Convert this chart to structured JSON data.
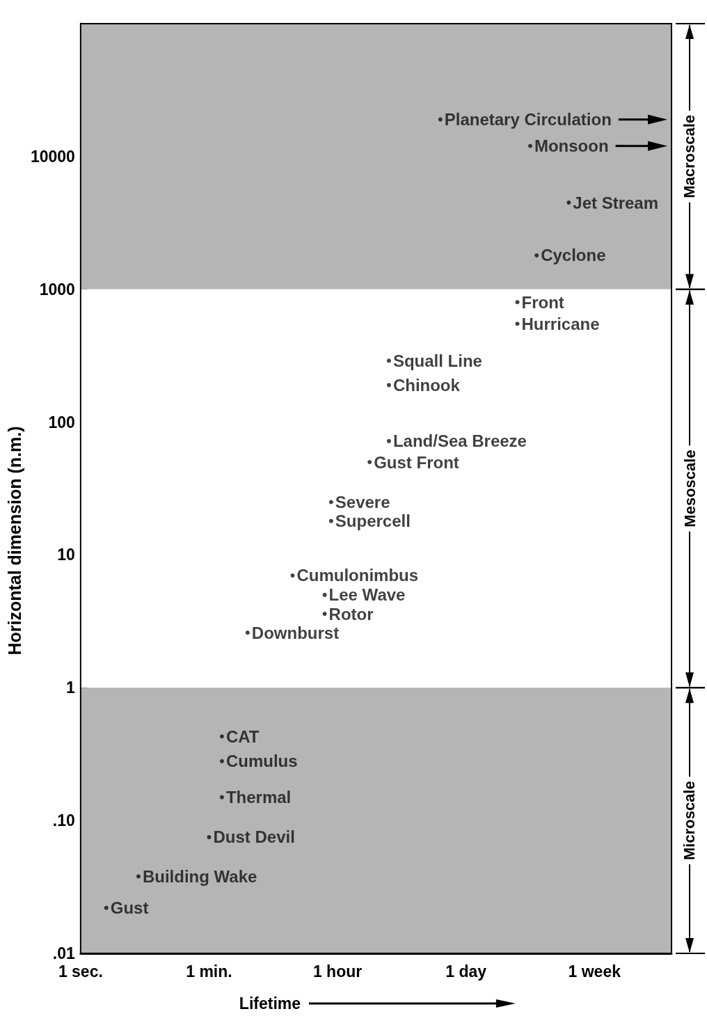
{
  "chart_data": {
    "type": "scatter",
    "xlabel": "Lifetime",
    "ylabel": "Horizontal dimension (n.m.)",
    "categories": [
      "1 sec.",
      null,
      null,
      null,
      null,
      null,
      null,
      null,
      null,
      null,
      null,
      null,
      null,
      null,
      null,
      null,
      null,
      null,
      null,
      null,
      "1 min.",
      null,
      null,
      null,
      null,
      null,
      null,
      null,
      null,
      null,
      null,
      null,
      null,
      null,
      null,
      null,
      null,
      null,
      null,
      null,
      "1 hour",
      null,
      null,
      null,
      null,
      null,
      null,
      null,
      null,
      null,
      null,
      null,
      null,
      null,
      null,
      null,
      null,
      null,
      null,
      null,
      "1 day",
      null,
      null,
      null,
      null,
      null,
      null,
      null,
      null,
      null,
      null,
      null,
      null,
      null,
      null,
      null,
      null,
      null,
      null,
      null,
      "1 week",
      null,
      null,
      null,
      null,
      null,
      null,
      null,
      null,
      null,
      null,
      null,
      null
    ],
    "ylim": [
      0.01,
      100000
    ],
    "yticks": [
      {
        "value": 0.01,
        "label": ".01"
      },
      {
        "value": 0.1,
        "label": ".10"
      },
      1,
      10,
      100,
      1000,
      10000
    ],
    "log": true,
    "marker": "circle",
    "bands": [
      {
        "axis": "y",
        "from": 1000,
        "to": 100000,
        "label": "Macroscale",
        "color": "#b5b5b5"
      },
      {
        "axis": "y",
        "from": 1,
        "to": 1000,
        "label": "Mesoscale",
        "color": "#ffffff"
      },
      {
        "axis": "y",
        "from": 0.01,
        "to": 1,
        "label": "Microscale",
        "color": "#b5b5b5"
      }
    ],
    "series": [
      {
        "color": "#111111",
        "values": [
          null,
          null,
          null,
          null,
          0.022,
          null,
          null,
          null,
          null,
          0.038,
          null,
          null,
          null,
          null,
          null,
          null,
          null,
          null,
          null,
          null,
          0.075,
          null,
          0.43,
          null,
          null,
          null,
          2.6,
          null,
          null,
          null,
          null,
          null,
          null,
          7,
          null,
          null,
          null,
          null,
          5,
          25,
          null,
          null,
          null,
          null,
          null,
          50,
          null,
          null,
          290,
          null,
          null,
          null,
          null,
          null,
          null,
          null,
          19000,
          null,
          null,
          null,
          null,
          null,
          null,
          null,
          null,
          null,
          null,
          null,
          800,
          null,
          12000,
          1800,
          null,
          null,
          null,
          null,
          4500,
          null,
          null,
          null,
          null,
          null,
          null,
          null,
          null,
          null,
          null,
          null,
          null,
          null,
          null,
          null,
          null
        ],
        "value_labels": [
          null,
          null,
          null,
          null,
          "Gust",
          null,
          null,
          null,
          null,
          "Building Wake",
          null,
          null,
          null,
          null,
          null,
          null,
          null,
          null,
          null,
          null,
          "Dust Devil",
          null,
          "CAT",
          null,
          null,
          null,
          "Downburst",
          null,
          null,
          null,
          null,
          null,
          null,
          "Cumulonimbus",
          null,
          null,
          null,
          null,
          "Lee Wave",
          "Severe",
          null,
          null,
          null,
          null,
          null,
          "Gust Front",
          null,
          null,
          "Squall Line",
          null,
          null,
          null,
          null,
          null,
          null,
          null,
          "Planetary Circulation",
          null,
          null,
          null,
          null,
          null,
          null,
          null,
          null,
          null,
          null,
          null,
          "Front",
          null,
          "Monsoon",
          "Cyclone",
          null,
          null,
          null,
          null,
          "Jet Stream",
          null,
          null,
          null,
          null,
          null,
          null,
          null,
          null,
          null,
          null,
          null,
          null,
          null,
          null,
          null,
          null
        ]
      },
      {
        "color": "#111111",
        "values": [
          null,
          null,
          null,
          null,
          null,
          null,
          null,
          null,
          null,
          null,
          null,
          null,
          null,
          null,
          null,
          null,
          null,
          null,
          null,
          null,
          null,
          null,
          0.28,
          null,
          null,
          null,
          null,
          null,
          null,
          null,
          null,
          null,
          null,
          null,
          null,
          null,
          null,
          null,
          3.6,
          18,
          null,
          null,
          null,
          null,
          null,
          null,
          null,
          null,
          190,
          null,
          null,
          null,
          null,
          null,
          null,
          null,
          null,
          null,
          null,
          null,
          null,
          null,
          null,
          null,
          null,
          null,
          null,
          null,
          550,
          null,
          null,
          null,
          null,
          null,
          null,
          null,
          null,
          null,
          null,
          null,
          null,
          null,
          null,
          null,
          null,
          null,
          null,
          null,
          null,
          null,
          null,
          null,
          null
        ],
        "value_labels": [
          null,
          null,
          null,
          null,
          null,
          null,
          null,
          null,
          null,
          null,
          null,
          null,
          null,
          null,
          null,
          null,
          null,
          null,
          null,
          null,
          null,
          null,
          "Cumulus",
          null,
          null,
          null,
          null,
          null,
          null,
          null,
          null,
          null,
          null,
          null,
          null,
          null,
          null,
          null,
          "Rotor",
          "Supercell",
          null,
          null,
          null,
          null,
          null,
          null,
          null,
          null,
          "Chinook",
          null,
          null,
          null,
          null,
          null,
          null,
          null,
          null,
          null,
          null,
          null,
          null,
          null,
          null,
          null,
          null,
          null,
          null,
          null,
          "Hurricane",
          null,
          null,
          null,
          null,
          null,
          null,
          null,
          null,
          null,
          null,
          null,
          null,
          null,
          null,
          null,
          null,
          null,
          null,
          null,
          null,
          null,
          null,
          null,
          null
        ]
      },
      {
        "color": "#111111",
        "values": [
          null,
          null,
          null,
          null,
          null,
          null,
          null,
          null,
          null,
          null,
          null,
          null,
          null,
          null,
          null,
          null,
          null,
          null,
          null,
          null,
          null,
          null,
          0.15,
          null,
          null,
          null,
          null,
          null,
          null,
          null,
          null,
          null,
          null,
          null,
          null,
          null,
          null,
          null,
          null,
          null,
          null,
          null,
          null,
          null,
          null,
          null,
          null,
          null,
          72,
          null,
          null,
          null,
          null,
          null,
          null,
          null,
          null,
          null,
          null,
          null,
          null,
          null,
          null,
          null,
          null,
          null,
          null,
          null,
          null,
          null,
          null,
          null,
          null,
          null,
          null,
          null,
          null,
          null,
          null,
          null,
          null,
          null,
          null,
          null,
          null,
          null,
          null,
          null,
          null,
          null,
          null,
          null,
          null
        ],
        "value_labels": [
          null,
          null,
          null,
          null,
          null,
          null,
          null,
          null,
          null,
          null,
          null,
          null,
          null,
          null,
          null,
          null,
          null,
          null,
          null,
          null,
          null,
          null,
          "Thermal",
          null,
          null,
          null,
          null,
          null,
          null,
          null,
          null,
          null,
          null,
          null,
          null,
          null,
          null,
          null,
          null,
          null,
          null,
          null,
          null,
          null,
          null,
          null,
          null,
          null,
          "Land/Sea Breeze",
          null,
          null,
          null,
          null,
          null,
          null,
          null,
          null,
          null,
          null,
          null,
          null,
          null,
          null,
          null,
          null,
          null,
          null,
          null,
          null,
          null,
          null,
          null,
          null,
          null,
          null,
          null,
          null,
          null,
          null,
          null,
          null,
          null,
          null,
          null,
          null,
          null,
          null,
          null,
          null,
          null,
          null,
          null,
          null
        ]
      }
    ]
  }
}
